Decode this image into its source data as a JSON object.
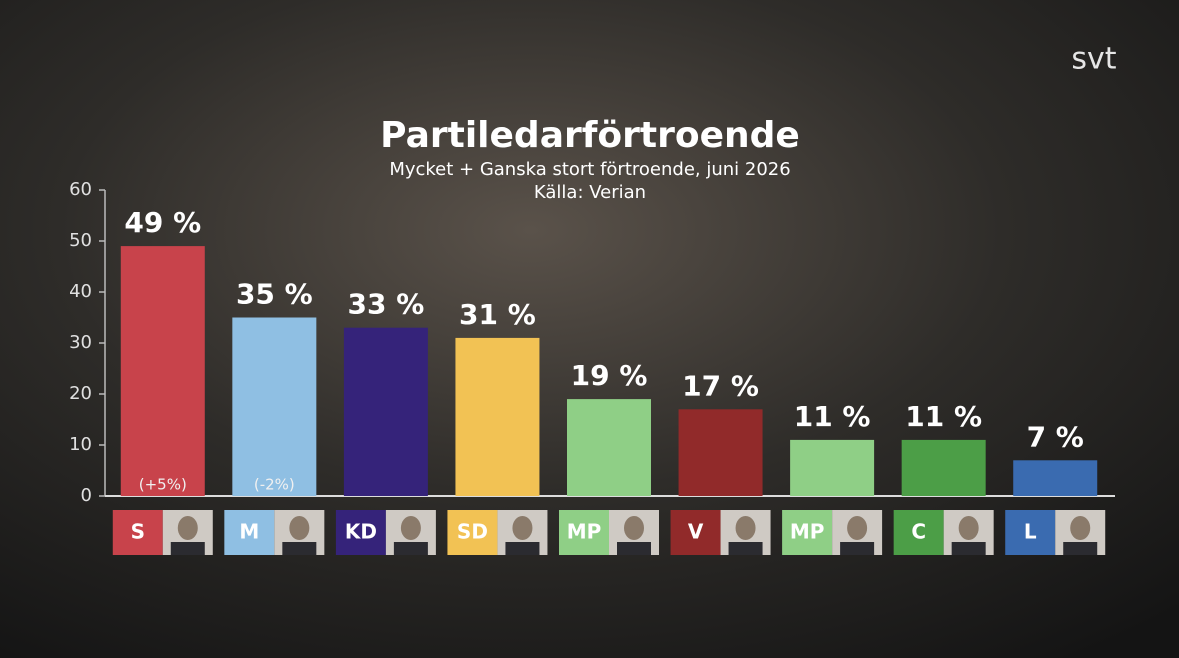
{
  "brand": "svt",
  "chart_data": {
    "type": "bar",
    "title": "Partiledarförtroende",
    "subtitle": "Mycket + Ganska stort förtroende, juni 2026",
    "source": "Källa: Verian",
    "categories": [
      "S",
      "M",
      "KD",
      "SD",
      "MP",
      "V",
      "MP",
      "C",
      "L"
    ],
    "values": [
      49,
      35,
      33,
      31,
      19,
      17,
      11,
      11,
      7
    ],
    "value_labels": [
      "49 %",
      "35 %",
      "33 %",
      "31 %",
      "19 %",
      "17 %",
      "11 %",
      "11 %",
      "7 %"
    ],
    "changes": [
      "(+5%)",
      "(-2%)",
      null,
      null,
      null,
      null,
      null,
      null,
      null
    ],
    "colors": [
      "#c8434b",
      "#8fbfe3",
      "#35237a",
      "#f2c254",
      "#8fcf86",
      "#912a2a",
      "#8fcf86",
      "#4c9e47",
      "#3a6bb0"
    ],
    "ylim": [
      0,
      60
    ],
    "yticks": [
      0,
      10,
      20,
      30,
      40,
      50,
      60
    ],
    "grid": false
  }
}
